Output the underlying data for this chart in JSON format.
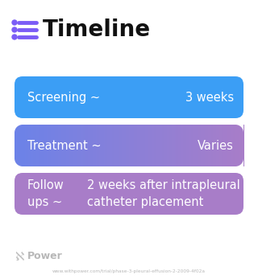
{
  "title": "Timeline",
  "title_fontsize": 20,
  "title_color": "#111111",
  "title_icon_color": "#7B5CF6",
  "title_icon_line_color": "#7B5CF6",
  "background_color": "#ffffff",
  "rows": [
    {
      "label": "Screening ~",
      "value": "3 weeks",
      "bg_color": "#3B9EF5",
      "gradient": false
    },
    {
      "label": "Treatment ~",
      "value": "Varies",
      "bg_color_left": "#6B82E8",
      "bg_color_right": "#A87DC8",
      "gradient": true
    },
    {
      "label": "Follow\nups ~",
      "value": "2 weeks after intrapleural\ncatheter placement",
      "bg_color": "#A87DC8",
      "gradient": false
    }
  ],
  "footer_text": "Power",
  "footer_url": "www.withpower.com/trial/phase-3-pleural-effusion-2-2009-4f02a",
  "text_color": "#ffffff",
  "text_fontsize": 10.5
}
